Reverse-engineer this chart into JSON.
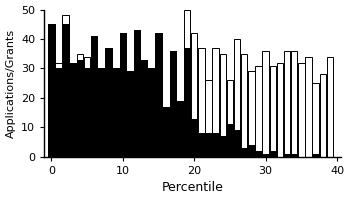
{
  "title": "",
  "xlabel": "Percentile",
  "ylabel": "Applications/Grants",
  "ylim": [
    0,
    50
  ],
  "yticks": [
    0,
    10,
    20,
    30,
    40,
    50
  ],
  "xticks": [
    0,
    10,
    20,
    30,
    40
  ],
  "bar_width": 0.9,
  "background_color": "#ffffff",
  "positions": [
    0,
    1,
    2,
    3,
    4,
    5,
    6,
    7,
    8,
    9,
    10,
    11,
    12,
    13,
    14,
    15,
    16,
    17,
    18,
    19,
    20,
    21,
    22,
    23,
    24,
    25,
    26,
    27,
    28,
    29,
    30,
    31,
    32,
    33,
    34,
    35,
    36,
    37,
    38,
    39
  ],
  "reviewed": [
    45,
    32,
    48,
    32,
    35,
    34,
    41,
    30,
    37,
    30,
    42,
    29,
    43,
    33,
    30,
    42,
    17,
    36,
    19,
    50,
    42,
    37,
    26,
    37,
    35,
    26,
    40,
    35,
    29,
    31,
    36,
    31,
    32,
    36,
    36,
    32,
    34,
    25,
    28,
    34
  ],
  "funded": [
    45,
    30,
    45,
    32,
    33,
    30,
    41,
    30,
    37,
    30,
    42,
    29,
    43,
    33,
    30,
    42,
    17,
    36,
    19,
    37,
    13,
    8,
    8,
    8,
    7,
    11,
    9,
    3,
    4,
    2,
    1,
    2,
    0,
    1,
    1,
    0,
    0,
    1,
    0,
    0
  ]
}
